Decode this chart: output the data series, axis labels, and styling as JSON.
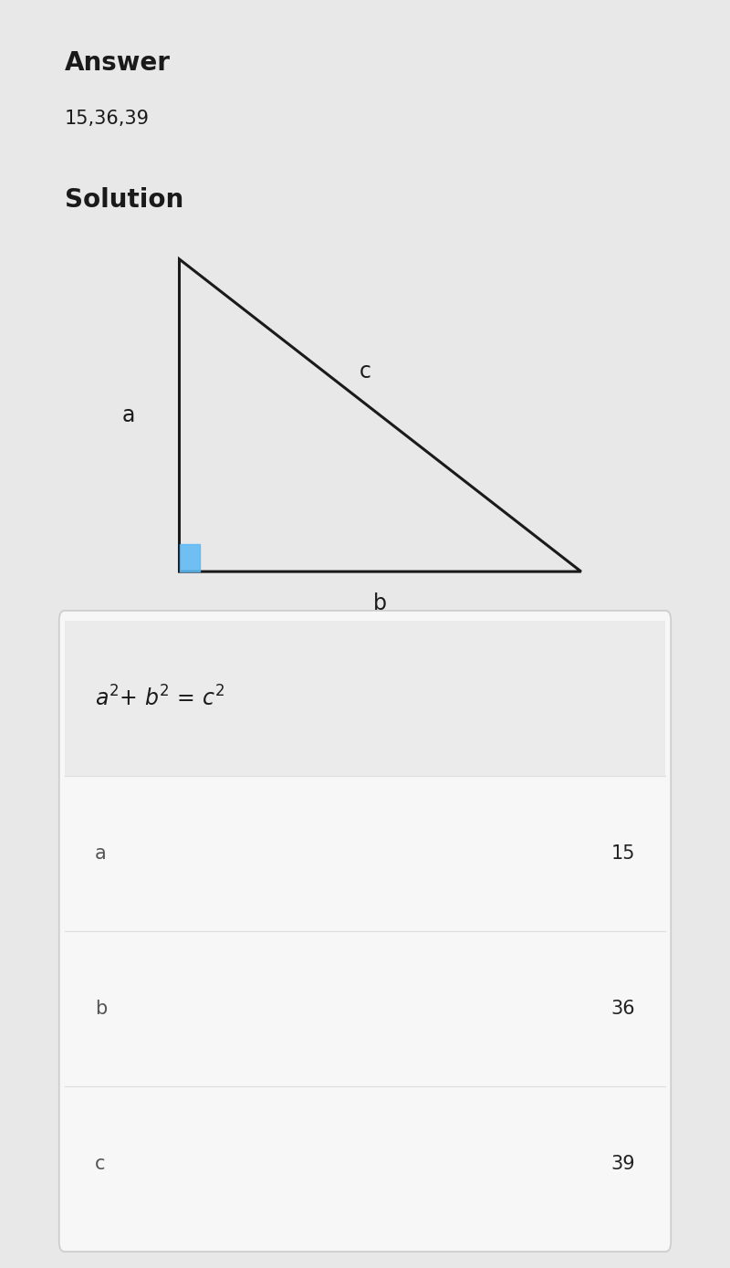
{
  "title": "Answer",
  "answer_value": "15,36,39",
  "solution_label": "Solution",
  "triangle": {
    "right_angle_color": "#5bb8f5",
    "line_color": "#1a1a1a",
    "line_width": 2.2,
    "label_a": "a",
    "label_b": "b",
    "label_c": "c"
  },
  "table": {
    "bg_color": "#f5f5f5",
    "border_color": "#cccccc",
    "header_bg": "#eeeeee",
    "rows": [
      {
        "label": "a",
        "value": "15"
      },
      {
        "label": "b",
        "value": "36"
      },
      {
        "label": "c",
        "value": "39"
      }
    ],
    "label_color": "#555555",
    "value_color": "#222222",
    "formula_fontsize": 17,
    "label_fontsize": 15,
    "value_fontsize": 15,
    "divider_color": "#dddddd"
  },
  "bg_color": "#ffffff",
  "side_bg": "#e8e8e8",
  "text_color": "#1a1a1a",
  "answer_fontsize": 20,
  "answer_value_fontsize": 15,
  "solution_fontsize": 20,
  "triangle_label_fontsize": 17
}
